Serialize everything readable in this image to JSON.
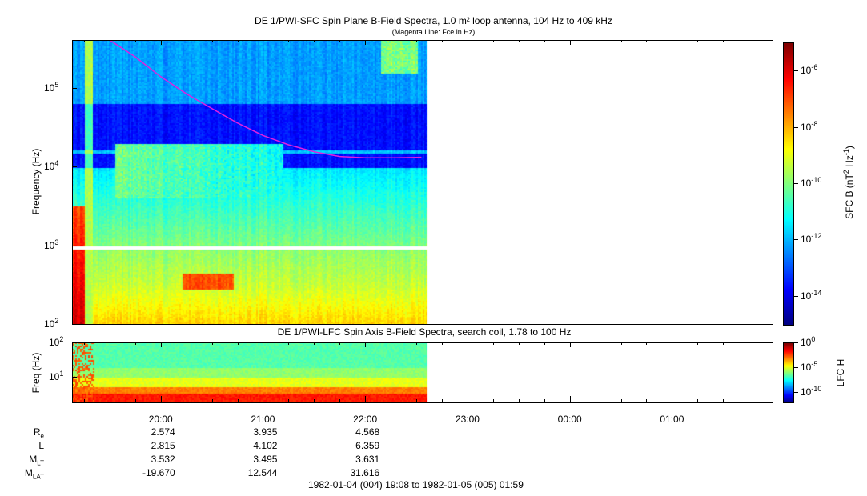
{
  "chart_data": [
    {
      "type": "heatmap",
      "title": "DE 1/PWI-SFC  Spin Plane B-Field Spectra, 1.0 m² loop antenna, 104 Hz to 409 kHz",
      "subtitle": "(Magenta Line: Fce in Hz)",
      "ylabel": "Frequency (Hz)",
      "yscale": "log",
      "ylim": [
        100,
        409000
      ],
      "yticks": [
        {
          "v": 100,
          "e": "2"
        },
        {
          "v": 1000,
          "e": "3"
        },
        {
          "v": 10000,
          "e": "4"
        },
        {
          "v": 100000,
          "e": "5"
        }
      ],
      "xlim_hours": [
        19.133,
        25.983
      ],
      "data_end_hour": 22.6,
      "colorbar": {
        "label": "SFC B (nT",
        "label_mid": "2",
        "label_unit": " Hz",
        "label_exp": "-1",
        "label_end": ")",
        "range_log": [
          -15,
          -5
        ],
        "ticks": [
          "-6",
          "-8",
          "-10",
          "-12",
          "-14"
        ],
        "tick_values": [
          -6,
          -8,
          -10,
          -12,
          -14
        ]
      },
      "fce_line": {
        "color": "#e020e0",
        "hours": [
          19.5,
          19.75,
          20.0,
          20.25,
          20.5,
          20.75,
          21.0,
          21.25,
          21.5,
          21.75,
          22.0,
          22.3,
          22.55
        ],
        "hz": [
          409000,
          250000,
          140000,
          85000,
          55000,
          36000,
          25000,
          19000,
          15500,
          13500,
          13000,
          13000,
          13200
        ]
      }
    },
    {
      "type": "heatmap",
      "title": "DE 1/PWI-LFC  Spin Axis B-Field Spectra, search coil, 1.78 to 100 Hz",
      "ylabel": "Freq (Hz)",
      "yscale": "log",
      "ylim": [
        1.78,
        100
      ],
      "yticks": [
        {
          "v": 100,
          "e": "2"
        },
        {
          "v": 10,
          "e": "1"
        }
      ],
      "colorbar": {
        "label": "LFC H",
        "range_log": [
          -12,
          0
        ],
        "ticks": [
          "0",
          "-5",
          "-10"
        ],
        "tick_values": [
          0,
          -5,
          -10
        ]
      }
    }
  ],
  "xaxis": {
    "ticks": [
      "20:00",
      "21:00",
      "22:00",
      "23:00",
      "00:00",
      "01:00"
    ],
    "tick_hours": [
      20,
      21,
      22,
      23,
      24,
      25
    ]
  },
  "ephemeris": {
    "rows": [
      {
        "label": "R",
        "sub": "e",
        "values": [
          "2.574",
          "3.935",
          "4.568"
        ]
      },
      {
        "label": "L",
        "sub": "",
        "values": [
          "2.815",
          "4.102",
          "6.359"
        ]
      },
      {
        "label": "M",
        "sub": "LT",
        "values": [
          "3.532",
          "3.495",
          "3.631"
        ]
      },
      {
        "label": "M",
        "sub": "LAT",
        "values": [
          "-19.670",
          "12.544",
          "31.616"
        ]
      }
    ]
  },
  "time_range": "1982-01-04 (004) 19:08 to 1982-01-05 (005) 01:59"
}
